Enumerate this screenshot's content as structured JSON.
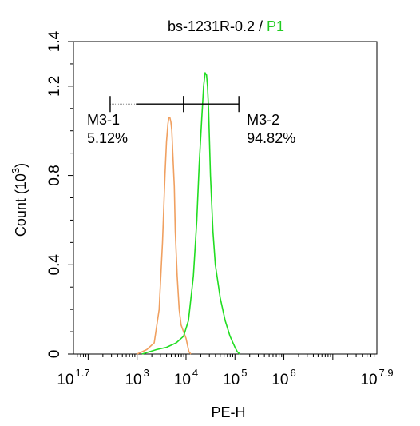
{
  "chart_data": {
    "type": "line",
    "title_parts": [
      {
        "text": "bs-1231R-0.2",
        "color": "#000000"
      },
      {
        "text": " / ",
        "color": "#000000"
      },
      {
        "text": "P1",
        "color": "#22cc22"
      }
    ],
    "xlabel": "PE-H",
    "ylabel": "Count",
    "ylabel_unit_base": "(10",
    "ylabel_unit_exp": "3",
    "ylabel_unit_close": ")",
    "x_scale": "log",
    "xlim": [
      1.7,
      7.9
    ],
    "ylim": [
      0,
      1.4
    ],
    "x_ticks": [
      {
        "base": "10",
        "exp": "1.7",
        "value": 1.7
      },
      {
        "base": "10",
        "exp": "3",
        "value": 3
      },
      {
        "base": "10",
        "exp": "4",
        "value": 4
      },
      {
        "base": "10",
        "exp": "5",
        "value": 5
      },
      {
        "base": "10",
        "exp": "6",
        "value": 6
      },
      {
        "base": "10",
        "exp": "7.9",
        "value": 7.9
      }
    ],
    "y_ticks": [
      {
        "label": "0",
        "value": 0
      },
      {
        "label": "0.4",
        "value": 0.4
      },
      {
        "label": "0.8",
        "value": 0.8
      },
      {
        "label": "1.2",
        "value": 1.2
      },
      {
        "label": "1.4",
        "value": 1.4
      }
    ],
    "grid": false,
    "series": [
      {
        "color": "#f0a060",
        "x": [
          3.0,
          3.2,
          3.35,
          3.45,
          3.52,
          3.57,
          3.6,
          3.63,
          3.65,
          3.67,
          3.69,
          3.71,
          3.73,
          3.76,
          3.78,
          3.82,
          3.86,
          3.9,
          3.95,
          4.0,
          4.03,
          4.06,
          4.1
        ],
        "y": [
          0.0,
          0.02,
          0.05,
          0.2,
          0.5,
          0.8,
          0.95,
          1.03,
          1.06,
          1.06,
          1.04,
          1.0,
          0.9,
          0.75,
          0.55,
          0.35,
          0.2,
          0.13,
          0.1,
          0.07,
          0.04,
          0.01,
          0.0
        ]
      },
      {
        "color": "#22dd22",
        "x": [
          3.1,
          3.4,
          3.6,
          3.8,
          3.95,
          4.05,
          4.15,
          4.22,
          4.27,
          4.32,
          4.36,
          4.39,
          4.42,
          4.44,
          4.46,
          4.48,
          4.5,
          4.55,
          4.6,
          4.7,
          4.8,
          4.9,
          5.0,
          5.05,
          5.1
        ],
        "y": [
          0.0,
          0.02,
          0.03,
          0.05,
          0.08,
          0.15,
          0.35,
          0.6,
          0.85,
          1.05,
          1.2,
          1.26,
          1.25,
          1.2,
          1.1,
          0.95,
          0.8,
          0.55,
          0.4,
          0.25,
          0.15,
          0.08,
          0.03,
          0.01,
          0.0
        ]
      }
    ],
    "gates": [
      {
        "name": "M3-1",
        "percent": "5.12%",
        "x_start": 2.45,
        "x_end": 3.95,
        "y": 1.12,
        "dotted_until": 2.98
      },
      {
        "name": "M3-2",
        "percent": "94.82%",
        "x_start": 3.95,
        "x_end": 5.08,
        "y": 1.12
      }
    ]
  }
}
